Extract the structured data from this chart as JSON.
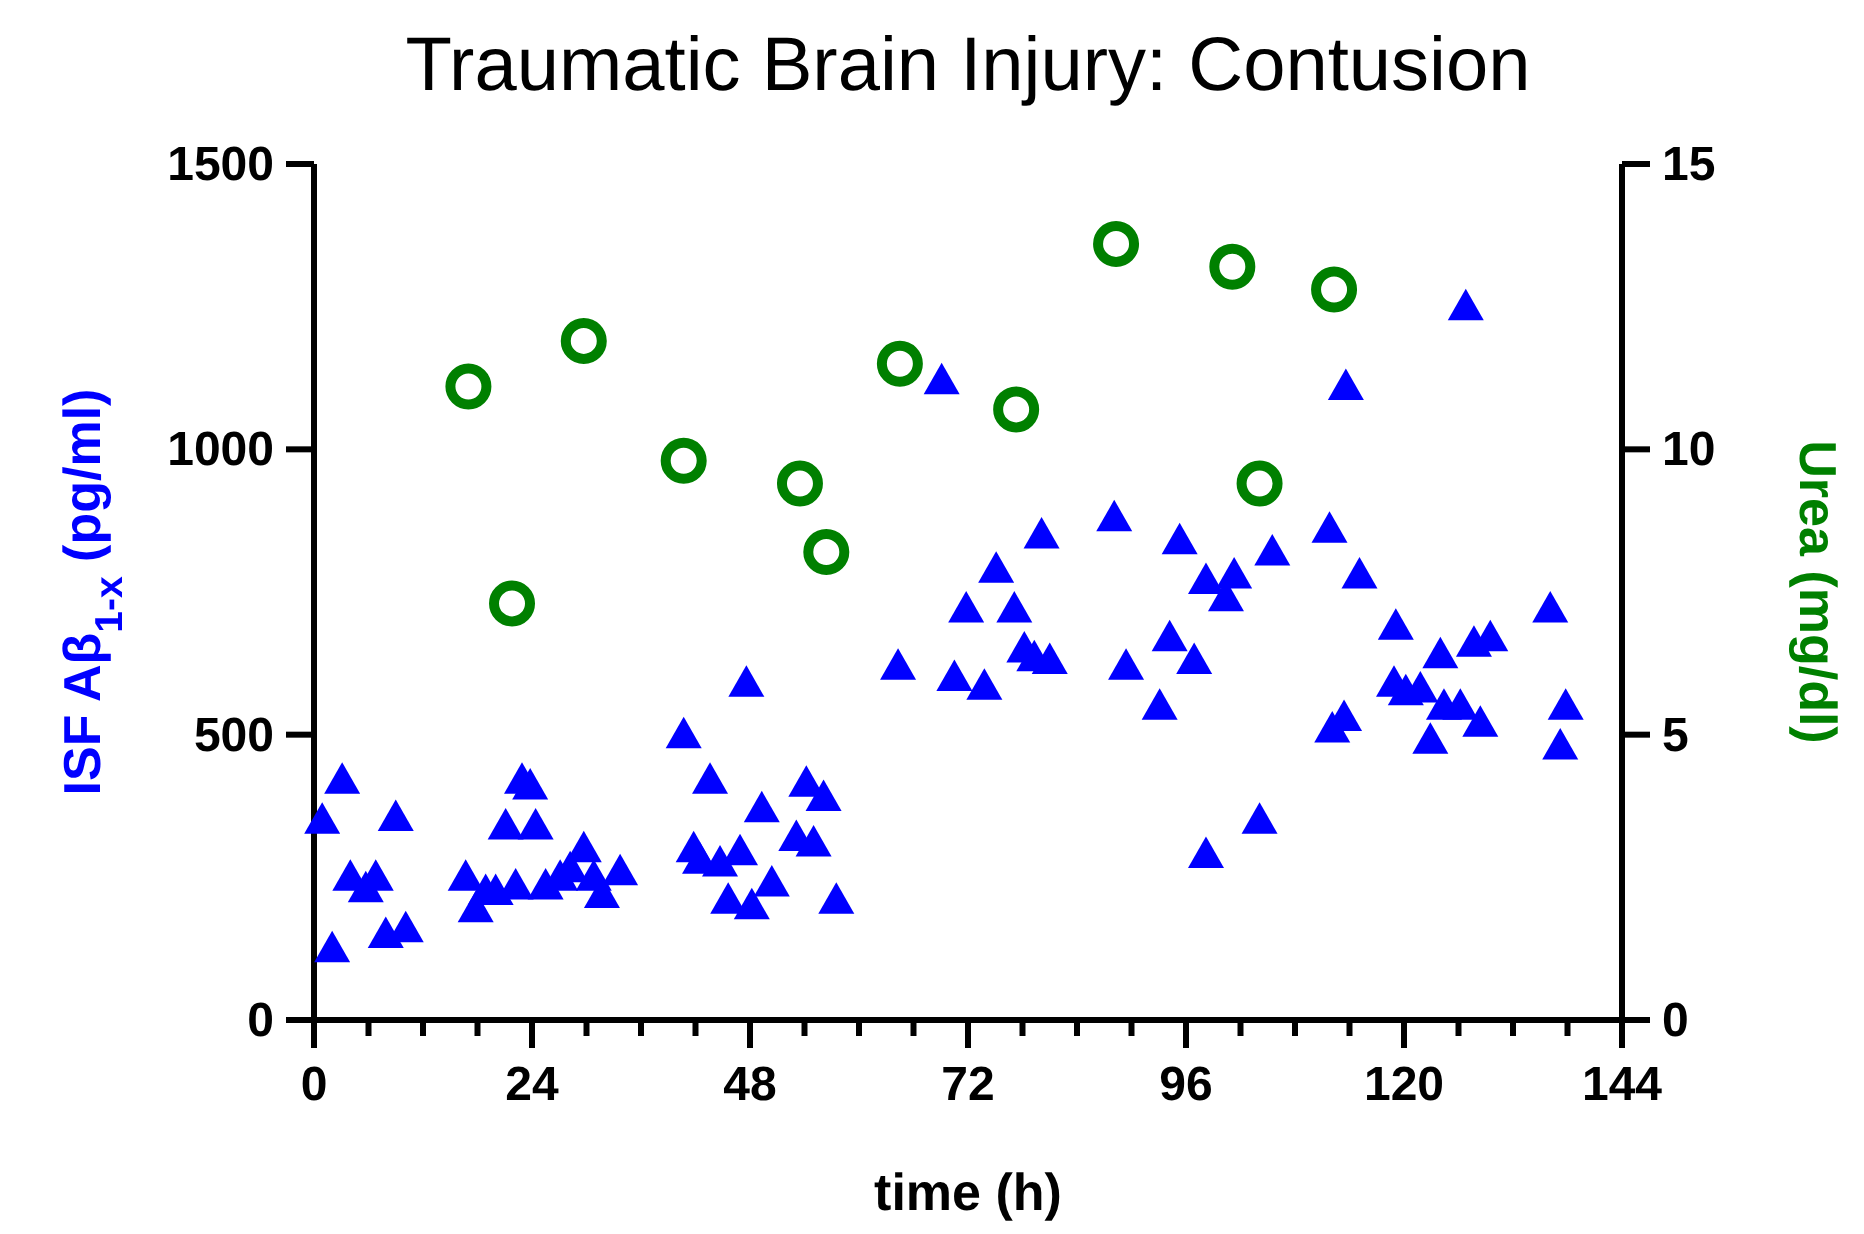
{
  "chart_data": {
    "type": "scatter",
    "title": "Traumatic Brain Injury: Contusion",
    "xlabel": "time (h)",
    "ylabel": "ISF Aβ$_{1-x}$ (pg/ml)",
    "y2label": "Urea  (mg/dl)",
    "xlim": [
      0,
      144
    ],
    "xticks": [
      0,
      {
        "value": 6,
        "label": null
      },
      {
        "value": 12,
        "label": null
      },
      {
        "value": 18,
        "label": null
      },
      24,
      {
        "value": 30,
        "label": null
      },
      {
        "value": 36,
        "label": null
      },
      {
        "value": 42,
        "label": null
      },
      48,
      {
        "value": 54,
        "label": null
      },
      {
        "value": 60,
        "label": null
      },
      {
        "value": 66,
        "label": null
      },
      72,
      {
        "value": 78,
        "label": null
      },
      {
        "value": 84,
        "label": null
      },
      {
        "value": 90,
        "label": null
      },
      96,
      {
        "value": 102,
        "label": null
      },
      {
        "value": 108,
        "label": null
      },
      {
        "value": 114,
        "label": null
      },
      120,
      {
        "value": 126,
        "label": null
      },
      {
        "value": 132,
        "label": null
      },
      {
        "value": 138,
        "label": null
      },
      144
    ],
    "ylim": [
      0,
      1500
    ],
    "yticks": [
      0,
      500,
      1000,
      1500
    ],
    "y2lim": [
      0,
      15
    ],
    "y2ticks": [
      0,
      5,
      10,
      15
    ],
    "grid": false,
    "series": [
      {
        "color": "#0000ff",
        "marker": "triangle",
        "x": [
          0.9,
          3.1,
          2.0,
          4.0,
          5.7,
          6.8,
          7.9,
          9.0,
          10.1,
          16.7,
          17.8,
          18.9,
          20.0,
          21.1,
          22.2,
          22.9,
          23.8,
          24.4,
          25.5,
          27.1,
          28.2,
          29.7,
          30.8,
          31.7,
          33.7,
          40.7,
          41.8,
          42.5,
          43.6,
          44.7,
          45.6,
          46.9,
          48.2,
          49.3,
          50.4,
          47.6,
          53.1,
          54.2,
          55.0,
          56.1,
          57.5,
          64.3,
          69.1,
          70.5,
          71.8,
          73.8,
          75.1,
          77.1,
          78.2,
          79.3,
          81.0,
          80.1,
          88.1,
          89.4,
          93.1,
          94.2,
          95.3,
          96.9,
          98.2,
          100.4,
          101.3,
          98.2,
          104.1,
          105.5,
          111.8,
          113.6,
          112.1,
          113.4,
          115.1,
          118.9,
          119.1,
          120.2,
          121.8,
          124.0,
          122.9,
          124.4,
          126.2,
          127.7,
          129.5,
          128.4,
          126.8,
          136.1,
          137.2,
          137.8
        ],
        "values": [
          350,
          420,
          125,
          250,
          230,
          250,
          150,
          355,
          160,
          250,
          195,
          225,
          225,
          340,
          235,
          420,
          410,
          340,
          235,
          250,
          265,
          300,
          250,
          220,
          260,
          500,
          300,
          280,
          420,
          275,
          210,
          295,
          200,
          370,
          240,
          590,
          320,
          415,
          310,
          390,
          210,
          620,
          1120,
          600,
          720,
          585,
          790,
          720,
          650,
          635,
          630,
          850,
          880,
          620,
          550,
          670,
          840,
          630,
          770,
          740,
          780,
          290,
          350,
          820,
          860,
          1110,
          510,
          530,
          780,
          590,
          690,
          575,
          580,
          640,
          490,
          550,
          550,
          660,
          670,
          520,
          1250,
          720,
          480,
          550
        ]
      },
      {
        "color": "#008000",
        "marker": "circle",
        "axis": "y2",
        "x": [
          17.0,
          21.8,
          29.7,
          40.7,
          53.5,
          56.4,
          64.5,
          77.3,
          88.3,
          101.1,
          104.1,
          112.3
        ],
        "values": [
          11.1,
          7.3,
          11.9,
          9.8,
          9.4,
          8.2,
          11.5,
          10.7,
          13.6,
          13.2,
          9.4,
          12.8
        ]
      }
    ]
  }
}
